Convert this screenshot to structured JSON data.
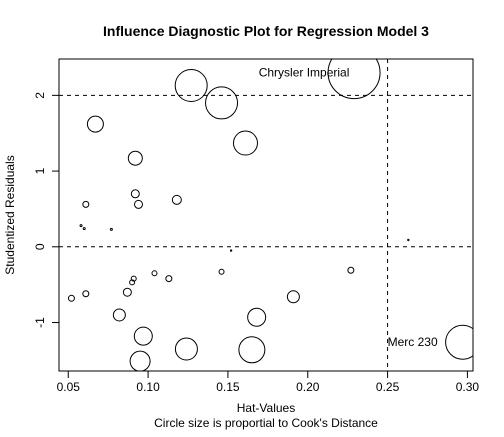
{
  "chart_data": {
    "type": "scatter",
    "title": "Influence Diagnostic Plot for Regression Model 3",
    "xlabel": "Hat-Values",
    "ylabel": "Studentized Residuals",
    "subtitle": "Circle size is proportial to Cook's Distance",
    "xlim": [
      0.0442,
      0.3035
    ],
    "ylim": [
      -1.64,
      2.48
    ],
    "xticks": [
      0.05,
      0.1,
      0.15,
      0.2,
      0.25,
      0.3
    ],
    "xtick_labels": [
      "0.05",
      "0.10",
      "0.15",
      "0.20",
      "0.25",
      "0.30"
    ],
    "yticks": [
      -1,
      0,
      1,
      2
    ],
    "ytick_labels": [
      "-1",
      "0",
      "1",
      "2"
    ],
    "reference_lines": {
      "h": [
        -2,
        0,
        2
      ],
      "v": [
        0.25
      ]
    },
    "grid": false,
    "size_encoding": "Cook's Distance",
    "points": [
      {
        "x": 0.229,
        "y": 2.3,
        "r": 26,
        "label": "Chrysler Imperial"
      },
      {
        "x": 0.297,
        "y": -1.26,
        "r": 17,
        "label": "Merc 230"
      },
      {
        "x": 0.127,
        "y": 2.13,
        "r": 16
      },
      {
        "x": 0.146,
        "y": 1.9,
        "r": 16
      },
      {
        "x": 0.161,
        "y": 1.37,
        "r": 12
      },
      {
        "x": 0.067,
        "y": 1.62,
        "r": 8
      },
      {
        "x": 0.092,
        "y": 1.17,
        "r": 7
      },
      {
        "x": 0.092,
        "y": 0.7,
        "r": 4
      },
      {
        "x": 0.094,
        "y": 0.56,
        "r": 4
      },
      {
        "x": 0.061,
        "y": 0.56,
        "r": 3
      },
      {
        "x": 0.118,
        "y": 0.62,
        "r": 4.5
      },
      {
        "x": 0.058,
        "y": 0.28,
        "r": 1
      },
      {
        "x": 0.06,
        "y": 0.24,
        "r": 1
      },
      {
        "x": 0.077,
        "y": 0.23,
        "r": 1
      },
      {
        "x": 0.263,
        "y": 0.09,
        "r": 0.7
      },
      {
        "x": 0.152,
        "y": -0.05,
        "r": 0.7
      },
      {
        "x": 0.227,
        "y": -0.31,
        "r": 3
      },
      {
        "x": 0.146,
        "y": -0.33,
        "r": 2.5
      },
      {
        "x": 0.104,
        "y": -0.35,
        "r": 2.5
      },
      {
        "x": 0.113,
        "y": -0.42,
        "r": 3
      },
      {
        "x": 0.091,
        "y": -0.42,
        "r": 2.5
      },
      {
        "x": 0.09,
        "y": -0.47,
        "r": 2.5
      },
      {
        "x": 0.087,
        "y": -0.6,
        "r": 4
      },
      {
        "x": 0.061,
        "y": -0.62,
        "r": 3
      },
      {
        "x": 0.052,
        "y": -0.68,
        "r": 3
      },
      {
        "x": 0.191,
        "y": -0.66,
        "r": 6
      },
      {
        "x": 0.082,
        "y": -0.9,
        "r": 6
      },
      {
        "x": 0.168,
        "y": -0.93,
        "r": 9
      },
      {
        "x": 0.097,
        "y": -1.18,
        "r": 9
      },
      {
        "x": 0.124,
        "y": -1.35,
        "r": 11
      },
      {
        "x": 0.165,
        "y": -1.36,
        "r": 13
      },
      {
        "x": 0.095,
        "y": -1.51,
        "r": 10
      }
    ]
  }
}
